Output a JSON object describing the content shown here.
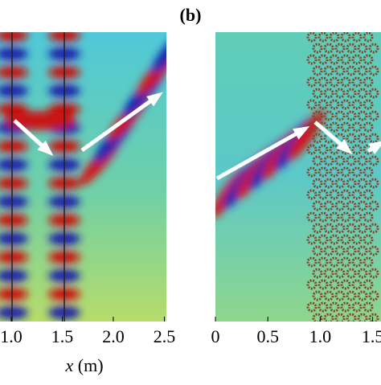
{
  "figure": {
    "panel_label": "(b)",
    "left_panel": {
      "xlim": [
        0.89,
        2.52
      ],
      "xticks": [
        {
          "value": 1,
          "label": "1.0"
        },
        {
          "value": 1.5,
          "label": "1.5"
        },
        {
          "value": 2,
          "label": "2.0"
        },
        {
          "value": 2.5,
          "label": "2.5"
        }
      ],
      "xlabel": {
        "variable": "x",
        "unit": "(m)"
      }
    },
    "right_panel": {
      "xlim": [
        0,
        1.58
      ],
      "xticks": [
        0,
        0.5,
        {
          "value": 1,
          "label": "1.0"
        },
        {
          "value": 1.5,
          "label": "1.5"
        }
      ]
    }
  }
}
